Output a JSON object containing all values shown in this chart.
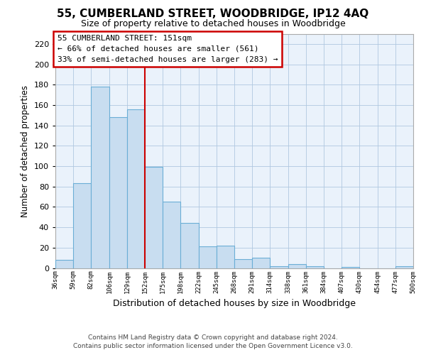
{
  "title": "55, CUMBERLAND STREET, WOODBRIDGE, IP12 4AQ",
  "subtitle": "Size of property relative to detached houses in Woodbridge",
  "xlabel": "Distribution of detached houses by size in Woodbridge",
  "ylabel": "Number of detached properties",
  "bar_color": "#c8ddf0",
  "bar_edge_color": "#6baed6",
  "plot_bg_color": "#eaf2fb",
  "fig_bg_color": "#ffffff",
  "grid_color": "#b0c8e0",
  "annotation_box_color": "#cc0000",
  "annotation_text_line1": "55 CUMBERLAND STREET: 151sqm",
  "annotation_text_line2": "← 66% of detached houses are smaller (561)",
  "annotation_text_line3": "33% of semi-detached houses are larger (283) →",
  "reference_line_color": "#cc0000",
  "bins": [
    36,
    59,
    82,
    106,
    129,
    152,
    175,
    198,
    222,
    245,
    268,
    291,
    314,
    338,
    361,
    384,
    407,
    430,
    454,
    477,
    500
  ],
  "bin_labels": [
    "36sqm",
    "59sqm",
    "82sqm",
    "106sqm",
    "129sqm",
    "152sqm",
    "175sqm",
    "198sqm",
    "222sqm",
    "245sqm",
    "268sqm",
    "291sqm",
    "314sqm",
    "338sqm",
    "361sqm",
    "384sqm",
    "407sqm",
    "430sqm",
    "454sqm",
    "477sqm",
    "500sqm"
  ],
  "counts": [
    8,
    83,
    178,
    148,
    156,
    99,
    65,
    44,
    21,
    22,
    9,
    10,
    2,
    4,
    2,
    0,
    1,
    0,
    0,
    2
  ],
  "ylim": [
    0,
    230
  ],
  "yticks": [
    0,
    20,
    40,
    60,
    80,
    100,
    120,
    140,
    160,
    180,
    200,
    220
  ],
  "footer_line1": "Contains HM Land Registry data © Crown copyright and database right 2024.",
  "footer_line2": "Contains public sector information licensed under the Open Government Licence v3.0."
}
